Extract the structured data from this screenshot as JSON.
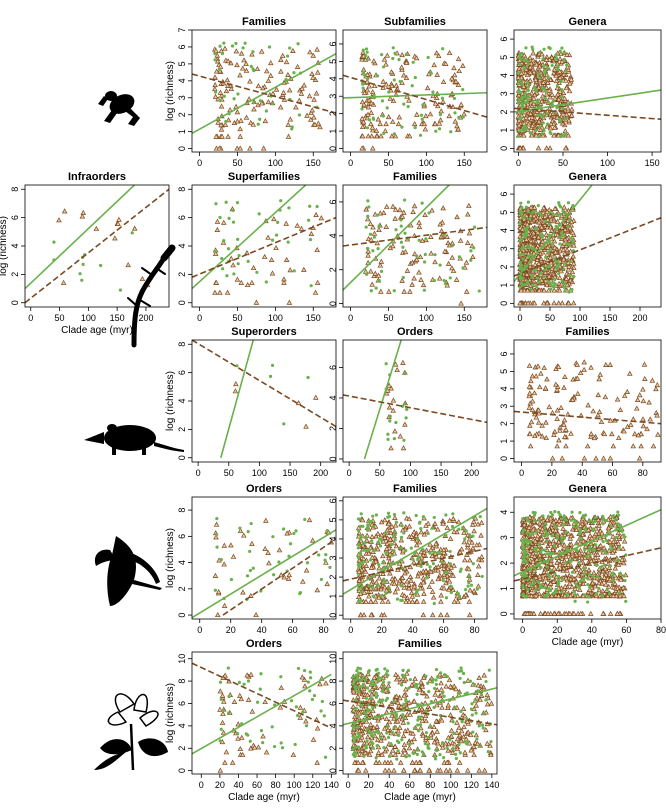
{
  "figure": {
    "ylabel": "log (richness)",
    "xlabel": "Clade age (myr)",
    "colors": {
      "green": "#6ab04c",
      "brown": "#7a4a22",
      "triangle_fill": "#f1c9a0"
    }
  },
  "silhouettes": [
    {
      "name": "frog-silhouette"
    },
    {
      "name": "lizard-silhouette"
    },
    {
      "name": "shrew-silhouette"
    },
    {
      "name": "hummingbird-silhouette"
    },
    {
      "name": "flower-silhouette"
    }
  ],
  "chart_data": [
    {
      "id": "amphibia-families",
      "type": "scatter",
      "title": "Families",
      "xlim": [
        -10,
        180
      ],
      "ylim": [
        -0.2,
        7
      ],
      "xticks": [
        0,
        50,
        100,
        150
      ],
      "yticks": [
        0,
        1,
        2,
        3,
        4,
        5,
        6,
        7
      ],
      "show_ylabel": true,
      "show_xlabel": false,
      "n_green": 40,
      "n_brown": 140,
      "cluster_x": [
        20,
        160
      ],
      "cluster_y": [
        0,
        7
      ],
      "green_line": [
        [
          -10,
          0.9
        ],
        [
          180,
          5.6
        ]
      ],
      "brown_line": [
        [
          -10,
          4.4
        ],
        [
          180,
          2.1
        ]
      ]
    },
    {
      "id": "amphibia-subfamilies",
      "type": "scatter",
      "title": "Subfamilies",
      "xlim": [
        -10,
        180
      ],
      "ylim": [
        -0.2,
        6.8
      ],
      "xticks": [
        0,
        50,
        100,
        150
      ],
      "yticks": [
        0,
        1,
        2,
        3,
        4,
        5,
        6
      ],
      "show_ylabel": false,
      "show_xlabel": false,
      "n_green": 60,
      "n_brown": 160,
      "cluster_x": [
        15,
        150
      ],
      "cluster_y": [
        0,
        6.5
      ],
      "green_line": [
        [
          -10,
          2.9
        ],
        [
          180,
          3.2
        ]
      ],
      "brown_line": [
        [
          -10,
          4.2
        ],
        [
          180,
          1.8
        ]
      ]
    },
    {
      "id": "amphibia-genera",
      "type": "scatter",
      "title": "Genera",
      "xlim": [
        -5,
        160
      ],
      "ylim": [
        -0.2,
        6.5
      ],
      "xticks": [
        0,
        50,
        100,
        150
      ],
      "yticks": [
        0,
        1,
        2,
        3,
        4,
        5,
        6
      ],
      "show_ylabel": false,
      "show_xlabel": false,
      "n_green": 120,
      "n_brown": 500,
      "cluster_x": [
        0,
        60
      ],
      "cluster_y": [
        0,
        6.2
      ],
      "green_line": [
        [
          -5,
          2.0
        ],
        [
          160,
          3.2
        ]
      ],
      "brown_line": [
        [
          -5,
          2.2
        ],
        [
          160,
          1.6
        ]
      ]
    },
    {
      "id": "squamata-infraorders",
      "type": "scatter",
      "title": "Infraorders",
      "xlim": [
        -10,
        240
      ],
      "ylim": [
        -0.3,
        8.3
      ],
      "xticks": [
        0,
        50,
        100,
        150,
        200
      ],
      "yticks": [
        0,
        2,
        4,
        6,
        8
      ],
      "show_ylabel": true,
      "show_xlabel": true,
      "n_green": 10,
      "n_brown": 14,
      "cluster_x": [
        40,
        220
      ],
      "cluster_y": [
        0,
        8
      ],
      "green_line": [
        [
          -10,
          1.0
        ],
        [
          180,
          8.3
        ]
      ],
      "brown_line": [
        [
          -10,
          0.0
        ],
        [
          240,
          8.0
        ]
      ]
    },
    {
      "id": "squamata-superfamilies",
      "type": "scatter",
      "title": "Superfamilies",
      "xlim": [
        -10,
        180
      ],
      "ylim": [
        -0.3,
        8.3
      ],
      "xticks": [
        0,
        50,
        100,
        150
      ],
      "yticks": [
        0,
        2,
        4,
        6,
        8
      ],
      "show_ylabel": false,
      "show_xlabel": false,
      "n_green": 35,
      "n_brown": 45,
      "cluster_x": [
        20,
        170
      ],
      "cluster_y": [
        0,
        8
      ],
      "green_line": [
        [
          -10,
          1.0
        ],
        [
          140,
          8.3
        ]
      ],
      "brown_line": [
        [
          -10,
          1.8
        ],
        [
          180,
          6.0
        ]
      ]
    },
    {
      "id": "squamata-families",
      "type": "scatter",
      "title": "Families",
      "xlim": [
        -10,
        180
      ],
      "ylim": [
        -0.2,
        7
      ],
      "xticks": [
        0,
        50,
        100,
        150
      ],
      "yticks": [
        0,
        2,
        4,
        6
      ],
      "show_ylabel": false,
      "show_xlabel": false,
      "n_green": 50,
      "n_brown": 110,
      "cluster_x": [
        20,
        170
      ],
      "cluster_y": [
        0,
        6.8
      ],
      "green_line": [
        [
          -10,
          0.8
        ],
        [
          130,
          7.0
        ]
      ],
      "brown_line": [
        [
          -10,
          3.4
        ],
        [
          180,
          4.5
        ]
      ]
    },
    {
      "id": "squamata-genera",
      "type": "scatter",
      "title": "Genera",
      "xlim": [
        -10,
        235
      ],
      "ylim": [
        -0.2,
        6.5
      ],
      "xticks": [
        0,
        50,
        100,
        150,
        200
      ],
      "yticks": [
        0,
        1,
        2,
        3,
        4,
        5,
        6
      ],
      "show_ylabel": false,
      "show_xlabel": false,
      "n_green": 150,
      "n_brown": 700,
      "cluster_x": [
        0,
        90
      ],
      "cluster_y": [
        0,
        6.2
      ],
      "green_line": [
        [
          -10,
          1.2
        ],
        [
          120,
          6.5
        ]
      ],
      "brown_line": [
        [
          -10,
          1.5
        ],
        [
          235,
          4.7
        ]
      ]
    },
    {
      "id": "mammalia-superorders",
      "type": "scatter",
      "title": "Superorders",
      "xlim": [
        -10,
        225
      ],
      "ylim": [
        -0.3,
        8.3
      ],
      "xticks": [
        0,
        50,
        100,
        150,
        200
      ],
      "yticks": [
        0,
        2,
        4,
        6,
        8
      ],
      "show_ylabel": true,
      "show_xlabel": false,
      "n_green": 5,
      "n_brown": 5,
      "cluster_x": [
        60,
        220
      ],
      "cluster_y": [
        1,
        8
      ],
      "green_line": [
        [
          37,
          0.0
        ],
        [
          90,
          8.3
        ]
      ],
      "brown_line": [
        [
          -10,
          8.3
        ],
        [
          225,
          2.2
        ]
      ]
    },
    {
      "id": "mammalia-orders",
      "type": "scatter",
      "title": "Orders",
      "xlim": [
        -10,
        225
      ],
      "ylim": [
        -0.2,
        7.8
      ],
      "xticks": [
        0,
        50,
        100,
        150,
        200
      ],
      "yticks": [
        0,
        2,
        4,
        6
      ],
      "show_ylabel": false,
      "show_xlabel": false,
      "n_green": 15,
      "n_brown": 18,
      "cluster_x": [
        60,
        95
      ],
      "cluster_y": [
        0,
        7.5
      ],
      "green_line": [
        [
          25,
          0.0
        ],
        [
          85,
          7.8
        ]
      ],
      "brown_line": [
        [
          -10,
          4.2
        ],
        [
          225,
          2.4
        ]
      ]
    },
    {
      "id": "mammalia-families",
      "type": "scatter",
      "title": "Families",
      "xlim": [
        -5,
        92
      ],
      "ylim": [
        -0.2,
        6.8
      ],
      "xticks": [
        0,
        20,
        40,
        60,
        80
      ],
      "yticks": [
        0,
        1,
        2,
        3,
        4,
        5,
        6
      ],
      "show_ylabel": false,
      "show_xlabel": false,
      "n_green": 0,
      "n_brown": 150,
      "cluster_x": [
        5,
        90
      ],
      "cluster_y": [
        0,
        6.5
      ],
      "green_line": null,
      "brown_line": [
        [
          -5,
          2.7
        ],
        [
          92,
          2.0
        ]
      ]
    },
    {
      "id": "aves-orders",
      "type": "scatter",
      "title": "Orders",
      "xlim": [
        -5,
        88
      ],
      "ylim": [
        -0.3,
        9
      ],
      "xticks": [
        0,
        20,
        40,
        60,
        80
      ],
      "yticks": [
        0,
        2,
        4,
        6,
        8
      ],
      "show_ylabel": true,
      "show_xlabel": false,
      "n_green": 35,
      "n_brown": 40,
      "cluster_x": [
        10,
        85
      ],
      "cluster_y": [
        0,
        8.7
      ],
      "green_line": [
        [
          -5,
          -0.2
        ],
        [
          88,
          6.5
        ]
      ],
      "brown_line": [
        [
          15,
          0.0
        ],
        [
          88,
          5.8
        ]
      ]
    },
    {
      "id": "aves-families",
      "type": "scatter",
      "title": "Families",
      "xlim": [
        -5,
        88
      ],
      "ylim": [
        -0.2,
        6.2
      ],
      "xticks": [
        0,
        20,
        40,
        60,
        80
      ],
      "yticks": [
        0,
        1,
        2,
        3,
        4,
        5,
        6
      ],
      "show_ylabel": false,
      "show_xlabel": false,
      "n_green": 150,
      "n_brown": 450,
      "cluster_x": [
        5,
        85
      ],
      "cluster_y": [
        0,
        6
      ],
      "green_line": [
        [
          -5,
          1.1
        ],
        [
          88,
          5.6
        ]
      ],
      "brown_line": [
        [
          -5,
          1.8
        ],
        [
          88,
          3.5
        ]
      ]
    },
    {
      "id": "aves-genera",
      "type": "scatter",
      "title": "Genera",
      "xlim": [
        -5,
        80
      ],
      "ylim": [
        -0.2,
        4.6
      ],
      "xticks": [
        0,
        20,
        40,
        60,
        80
      ],
      "yticks": [
        0,
        1,
        2,
        3,
        4
      ],
      "show_ylabel": false,
      "show_xlabel": true,
      "n_green": 250,
      "n_brown": 900,
      "cluster_x": [
        0,
        60
      ],
      "cluster_y": [
        0,
        4.5
      ],
      "green_line": [
        [
          -5,
          1.5
        ],
        [
          80,
          4.1
        ]
      ],
      "brown_line": [
        [
          -5,
          1.3
        ],
        [
          80,
          2.6
        ]
      ]
    },
    {
      "id": "angiosperms-orders",
      "type": "scatter",
      "title": "Orders",
      "xlim": [
        -10,
        145
      ],
      "ylim": [
        -0.3,
        10.6
      ],
      "xticks": [
        0,
        20,
        40,
        60,
        80,
        100,
        120,
        140
      ],
      "yticks": [
        0,
        2,
        4,
        6,
        8,
        10
      ],
      "show_ylabel": true,
      "show_xlabel": true,
      "n_green": 45,
      "n_brown": 60,
      "cluster_x": [
        20,
        140
      ],
      "cluster_y": [
        0,
        10.2
      ],
      "green_line": [
        [
          -10,
          1.5
        ],
        [
          140,
          8.6
        ]
      ],
      "brown_line": [
        [
          -10,
          9.6
        ],
        [
          140,
          3.8
        ]
      ]
    },
    {
      "id": "angiosperms-families",
      "type": "scatter",
      "title": "Families",
      "xlim": [
        -5,
        145
      ],
      "ylim": [
        -0.3,
        10.6
      ],
      "xticks": [
        0,
        20,
        40,
        60,
        80,
        100,
        120,
        140
      ],
      "yticks": [
        0,
        2,
        4,
        6,
        8,
        10
      ],
      "show_ylabel": false,
      "show_xlabel": true,
      "n_green": 250,
      "n_brown": 500,
      "cluster_x": [
        5,
        140
      ],
      "cluster_y": [
        0,
        10.2
      ],
      "green_line": [
        [
          -5,
          4.1
        ],
        [
          145,
          7.4
        ]
      ],
      "brown_line": [
        [
          -5,
          6.3
        ],
        [
          145,
          4.1
        ]
      ]
    }
  ]
}
